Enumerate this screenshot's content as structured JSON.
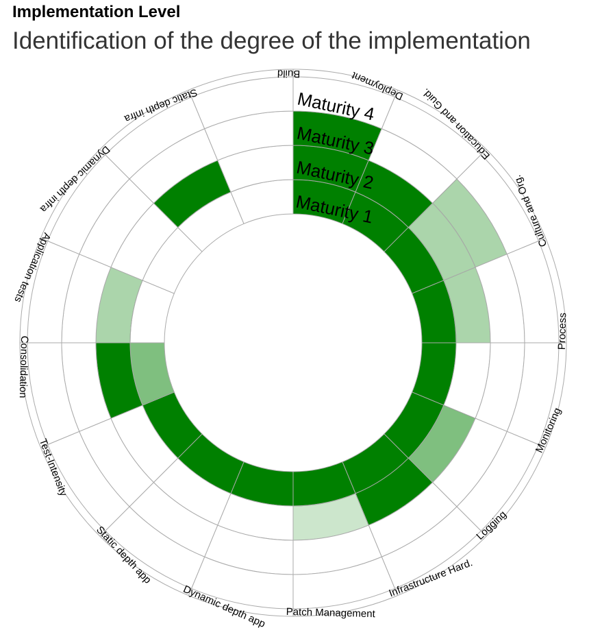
{
  "header": {
    "title": "Implementation Level",
    "subtitle": "Identification of the degree of the implementation"
  },
  "chart_data": {
    "type": "radial-bar",
    "title": "Implementation Level",
    "subtitle": "Identification of the degree of the implementation",
    "levels": [
      "Maturity 1",
      "Maturity 2",
      "Maturity 3",
      "Maturity 4"
    ],
    "categories": [
      "Build",
      "Deployment",
      "Education and Guid.",
      "Culture and Org.",
      "Process",
      "Monitoring",
      "Logging",
      "Infrastructure Hard.",
      "Patch Management",
      "Dynamic depth app",
      "Static depth app",
      "Test-Intensity",
      "Consolidation",
      "Application tests",
      "Dynamic depth infra",
      "Static depth infra"
    ],
    "values": [
      [
        1.0,
        1.0,
        1.0,
        0.0
      ],
      [
        1.0,
        1.0,
        0.0,
        0.0
      ],
      [
        1.0,
        0.33,
        0.33,
        0.0
      ],
      [
        1.0,
        0.33,
        0.0,
        0.0
      ],
      [
        1.0,
        0.0,
        0.0,
        0.0
      ],
      [
        1.0,
        0.5,
        0.0,
        0.0
      ],
      [
        1.0,
        1.0,
        0.0,
        0.0
      ],
      [
        1.0,
        0.2,
        0.0,
        0.0
      ],
      [
        1.0,
        0.0,
        0.0,
        0.0
      ],
      [
        1.0,
        0.0,
        0.0,
        0.0
      ],
      [
        1.0,
        0.0,
        0.0,
        0.0
      ],
      [
        0.5,
        1.0,
        0.0,
        0.0
      ],
      [
        0.0,
        0.33,
        0.0,
        0.0
      ],
      [
        0.0,
        0.0,
        0.0,
        0.0
      ],
      [
        0.0,
        1.0,
        0.0,
        0.0
      ],
      [
        0.0,
        0.0,
        0.0,
        0.0
      ]
    ],
    "color_scale": {
      "base": "#008000",
      "empty": "#ffffff",
      "grid": "#aaaaaa"
    },
    "legend": "none"
  }
}
